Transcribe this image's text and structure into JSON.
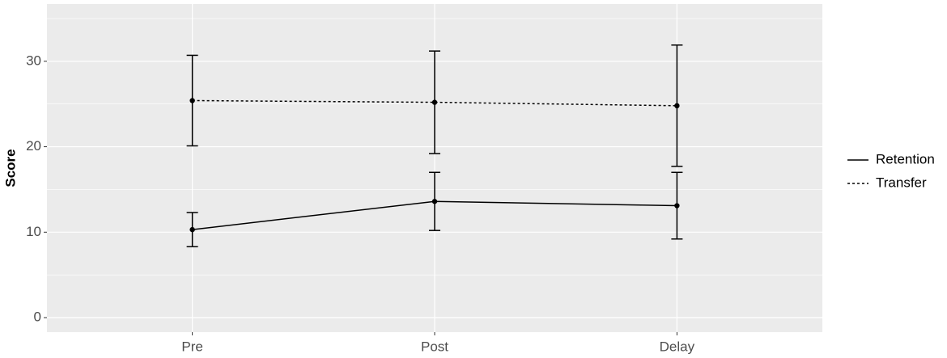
{
  "chart_data": {
    "type": "line",
    "ylabel": "Score",
    "categories": [
      "Pre",
      "Post",
      "Delay"
    ],
    "series": [
      {
        "name": "Retention",
        "color": "#000000",
        "dash": "solid",
        "values": [
          10.3,
          13.6,
          13.1
        ],
        "errors": [
          2.0,
          3.4,
          3.9
        ]
      },
      {
        "name": "Transfer",
        "color": "#000000",
        "dash": "dotted",
        "values": [
          25.4,
          25.2,
          24.8
        ],
        "errors": [
          5.3,
          6.0,
          7.1
        ]
      }
    ],
    "ylim": [
      -1.7,
      36.7
    ],
    "yticks": [
      0,
      10,
      20,
      30
    ],
    "yminor": [
      5,
      15,
      25,
      35
    ],
    "grid": true,
    "legend": "right"
  }
}
